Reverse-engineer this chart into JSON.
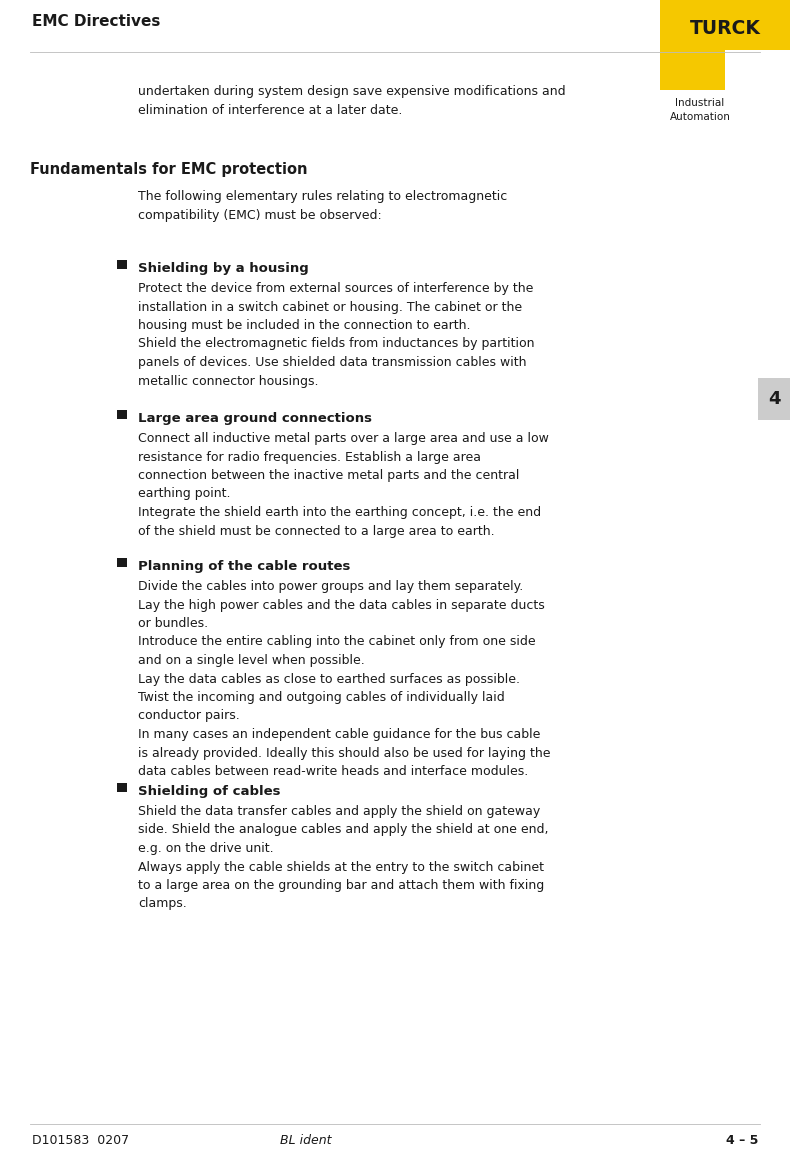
{
  "page_width": 7.9,
  "page_height": 11.66,
  "dpi": 100,
  "bg_color": "#ffffff",
  "text_color": "#1a1a1a",
  "turck_yellow": "#F5C800",
  "header_title": "EMC Directives",
  "turck_logo_text": "TURCK",
  "industrial_text": "Industrial\nAutomation",
  "footer_left": "D101583  0207",
  "footer_center": "BL ident",
  "footer_right": "4 – 5",
  "page_number": "4",
  "intro_text": "undertaken during system design save expensive modifications and\nelimination of interference at a later date.",
  "section_title": "Fundamentals for EMC protection",
  "section_intro": "The following elementary rules relating to electromagnetic\ncompatibility (EMC) must be observed:",
  "bullet1_title": "Shielding by a housing",
  "bullet1_text": "Protect the device from external sources of interference by the\ninstallation in a switch cabinet or housing. The cabinet or the\nhousing must be included in the connection to earth.\nShield the electromagnetic fields from inductances by partition\npanels of devices. Use shielded data transmission cables with\nmetallic connector housings.",
  "bullet2_title": "Large area ground connections",
  "bullet2_text": "Connect all inductive metal parts over a large area and use a low\nresistance for radio frequencies. Establish a large area\nconnection between the inactive metal parts and the central\nearthing point.\nIntegrate the shield earth into the earthing concept, i.e. the end\nof the shield must be connected to a large area to earth.",
  "bullet3_title": "Planning of the cable routes",
  "bullet3_text": "Divide the cables into power groups and lay them separately.\nLay the high power cables and the data cables in separate ducts\nor bundles.\nIntroduce the entire cabling into the cabinet only from one side\nand on a single level when possible.\nLay the data cables as close to earthed surfaces as possible.\nTwist the incoming and outgoing cables of individually laid\nconductor pairs.\nIn many cases an independent cable guidance for the bus cable\nis already provided. Ideally this should also be used for laying the\ndata cables between read-write heads and interface modules.",
  "bullet4_title": "Shielding of cables",
  "bullet4_text": "Shield the data transfer cables and apply the shield on gateway\nside. Shield the analogue cables and apply the shield at one end,\ne.g. on the drive unit.\nAlways apply the cable shields at the entry to the switch cabinet\nto a large area on the grounding bar and attach them with fixing\nclamps.",
  "body_fontsize": 9.0,
  "title_fontsize": 9.5,
  "section_title_fontsize": 10.5,
  "header_fontsize": 11.0,
  "footer_fontsize": 9.0,
  "logo_fontsize": 13.5,
  "pagenum_fontsize": 13.0
}
